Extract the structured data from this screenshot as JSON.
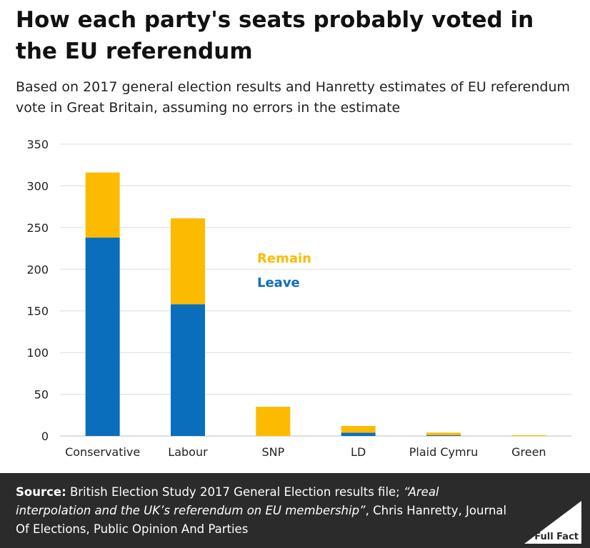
{
  "header": {
    "title": "How each party's seats probably voted in the EU referendum",
    "subtitle": "Based on 2017 general election results and Hanretty estimates of EU referendum vote in Great Britain, assuming no errors in the estimate"
  },
  "chart_data": {
    "type": "bar",
    "stacked": true,
    "categories": [
      "Conservative",
      "Labour",
      "SNP",
      "LD",
      "Plaid Cymru",
      "Green"
    ],
    "series": [
      {
        "name": "Leave",
        "color": "#0a6ebd",
        "values": [
          238,
          158,
          0,
          4,
          1,
          0
        ]
      },
      {
        "name": "Remain",
        "color": "#fcbb00",
        "values": [
          78,
          103,
          35,
          8,
          3,
          1
        ]
      }
    ],
    "ylim": [
      0,
      350
    ],
    "yticks": [
      "0",
      "50",
      "100",
      "150",
      "200",
      "250",
      "300",
      "350"
    ],
    "grid": true,
    "legend": "center"
  },
  "footer": {
    "source_label": "Source:",
    "source_text": "British Election Study 2017 General Election results file;",
    "source_italic": "“Areal interpolation and the UK’s referendum on EU membership”",
    "source_rest": ", Chris Hanretty, Journal Of Elections, Public Opinion And Parties",
    "logo_text": "Full Fact"
  }
}
